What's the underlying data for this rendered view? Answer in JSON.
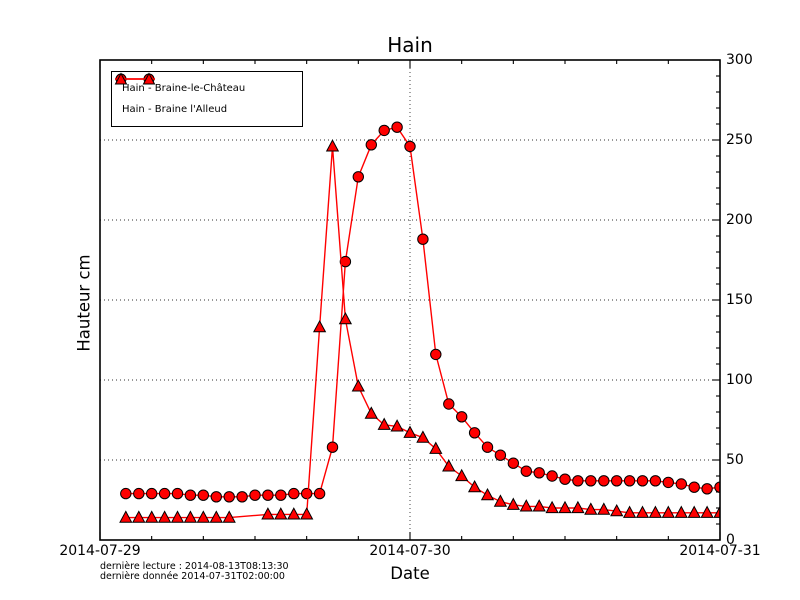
{
  "title": "Hain",
  "axes": {
    "xlabel": "Date",
    "ylabel": "Hauteur cm",
    "x_ticklabels": [
      "2014-07-29",
      "2014-07-30",
      "2014-07-31"
    ],
    "y_ticklabels": [
      "0",
      "50",
      "100",
      "150",
      "200",
      "250",
      "300"
    ]
  },
  "legend": {
    "items": [
      {
        "label": "Hain - Braine-le-Château",
        "marker": "circle"
      },
      {
        "label": "Hain - Braine l'Alleud",
        "marker": "triangle"
      }
    ]
  },
  "footnotes": {
    "line1": "dernière lecture : 2014-08-13T08:13:30",
    "line2": "dernière donnée  2014-07-31T02:00:00"
  },
  "colors": {
    "series": "#ff0000",
    "marker_edge": "#000000",
    "text": "#000000",
    "grid": "#000000",
    "background": "#ffffff"
  },
  "chart_data": {
    "type": "line",
    "title": "Hain",
    "xlabel": "Date",
    "ylabel": "Hauteur cm",
    "x_unit": "hours since 2014-07-29T00:00",
    "xlim_hours": [
      0,
      48
    ],
    "ylim": [
      0,
      300
    ],
    "x_major_tick_hours": [
      0,
      24,
      48
    ],
    "x_major_tick_labels": [
      "2014-07-29",
      "2014-07-30",
      "2014-07-31"
    ],
    "x_minor_tick_interval_hours": 4,
    "y_major_tick_interval": 50,
    "y_minor_tick_interval": 10,
    "grid": {
      "style": "dotted",
      "horizontal_at": [
        50,
        100,
        150,
        200,
        250
      ],
      "vertical_at_hours": [
        24
      ]
    },
    "legend_position": "upper left",
    "series": [
      {
        "name": "Hain - Braine-le-Château",
        "marker": "circle",
        "color": "#ff0000",
        "points_hour_value": [
          [
            2,
            29
          ],
          [
            3,
            29
          ],
          [
            4,
            29
          ],
          [
            5,
            29
          ],
          [
            6,
            29
          ],
          [
            7,
            28
          ],
          [
            8,
            28
          ],
          [
            9,
            27
          ],
          [
            10,
            27
          ],
          [
            11,
            27
          ],
          [
            12,
            28
          ],
          [
            13,
            28
          ],
          [
            14,
            28
          ],
          [
            15,
            29
          ],
          [
            16,
            29
          ],
          [
            17,
            29
          ],
          [
            18,
            58
          ],
          [
            19,
            174
          ],
          [
            20,
            227
          ],
          [
            21,
            247
          ],
          [
            22,
            256
          ],
          [
            23,
            258
          ],
          [
            24,
            246
          ],
          [
            25,
            188
          ],
          [
            26,
            116
          ],
          [
            27,
            85
          ],
          [
            28,
            77
          ],
          [
            29,
            67
          ],
          [
            30,
            58
          ],
          [
            31,
            53
          ],
          [
            32,
            48
          ],
          [
            33,
            43
          ],
          [
            34,
            42
          ],
          [
            35,
            40
          ],
          [
            36,
            38
          ],
          [
            37,
            37
          ],
          [
            38,
            37
          ],
          [
            39,
            37
          ],
          [
            40,
            37
          ],
          [
            41,
            37
          ],
          [
            42,
            37
          ],
          [
            43,
            37
          ],
          [
            44,
            36
          ],
          [
            45,
            35
          ],
          [
            46,
            33
          ],
          [
            47,
            32
          ],
          [
            48,
            33
          ]
        ]
      },
      {
        "name": "Hain - Braine l'Alleud",
        "marker": "triangle",
        "color": "#ff0000",
        "points_hour_value": [
          [
            2,
            14
          ],
          [
            3,
            14
          ],
          [
            4,
            14
          ],
          [
            5,
            14
          ],
          [
            6,
            14
          ],
          [
            7,
            14
          ],
          [
            8,
            14
          ],
          [
            9,
            14
          ],
          [
            10,
            14
          ],
          [
            13,
            16
          ],
          [
            14,
            16
          ],
          [
            15,
            16
          ],
          [
            16,
            16
          ],
          [
            17,
            133
          ],
          [
            18,
            246
          ],
          [
            19,
            138
          ],
          [
            20,
            96
          ],
          [
            21,
            79
          ],
          [
            22,
            72
          ],
          [
            23,
            71
          ],
          [
            24,
            67
          ],
          [
            25,
            64
          ],
          [
            26,
            57
          ],
          [
            27,
            46
          ],
          [
            28,
            40
          ],
          [
            29,
            33
          ],
          [
            30,
            28
          ],
          [
            31,
            24
          ],
          [
            32,
            22
          ],
          [
            33,
            21
          ],
          [
            34,
            21
          ],
          [
            35,
            20
          ],
          [
            36,
            20
          ],
          [
            37,
            20
          ],
          [
            38,
            19
          ],
          [
            39,
            19
          ],
          [
            40,
            18
          ],
          [
            41,
            17
          ],
          [
            42,
            17
          ],
          [
            43,
            17
          ],
          [
            44,
            17
          ],
          [
            45,
            17
          ],
          [
            46,
            17
          ],
          [
            47,
            17
          ],
          [
            48,
            17
          ]
        ]
      }
    ]
  }
}
